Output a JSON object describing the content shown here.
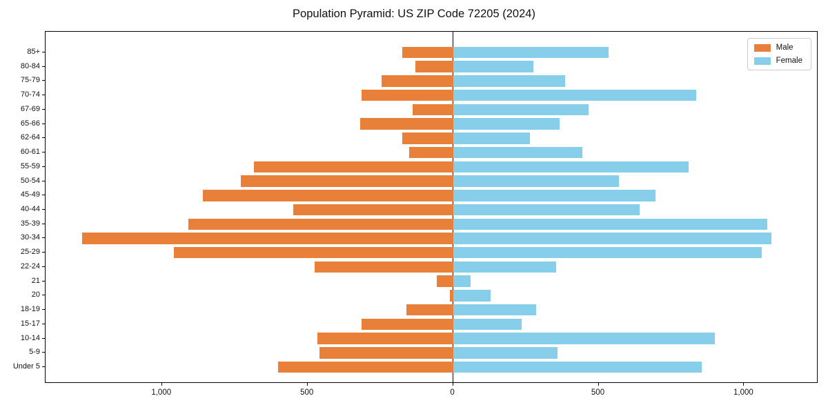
{
  "chart_data": {
    "type": "bar",
    "subtype": "population-pyramid",
    "title": "Population Pyramid: US ZIP Code 72205 (2024)",
    "categories_top_to_bottom": [
      "85+",
      "80-84",
      "75-79",
      "70-74",
      "67-69",
      "65-66",
      "62-64",
      "60-61",
      "55-59",
      "50-54",
      "45-49",
      "40-44",
      "35-39",
      "30-34",
      "25-29",
      "22-24",
      "21",
      "20",
      "18-19",
      "15-17",
      "10-14",
      "5-9",
      "Under 5"
    ],
    "series": [
      {
        "name": "Male",
        "side": "left",
        "color": "#e8803a",
        "values": [
          175,
          130,
          245,
          315,
          140,
          320,
          175,
          150,
          685,
          730,
          860,
          550,
          910,
          1275,
          960,
          475,
          55,
          10,
          160,
          315,
          465,
          460,
          600
        ]
      },
      {
        "name": "Female",
        "side": "right",
        "color": "#87ceeb",
        "values": [
          535,
          275,
          385,
          835,
          465,
          365,
          265,
          445,
          810,
          570,
          695,
          640,
          1080,
          1095,
          1060,
          355,
          60,
          130,
          285,
          235,
          900,
          360,
          855
        ]
      }
    ],
    "xlabel": "",
    "ylabel": "",
    "xlim": [
      -1400,
      1255
    ],
    "xticks": [
      {
        "value": -1000,
        "label": "1,000"
      },
      {
        "value": -500,
        "label": "500"
      },
      {
        "value": 0,
        "label": "0"
      },
      {
        "value": 500,
        "label": "500"
      },
      {
        "value": 1000,
        "label": "1,000"
      }
    ],
    "grid": false,
    "legend_position": "upper right",
    "zero_axis_color": "#000000",
    "frame_color": "#000000"
  }
}
